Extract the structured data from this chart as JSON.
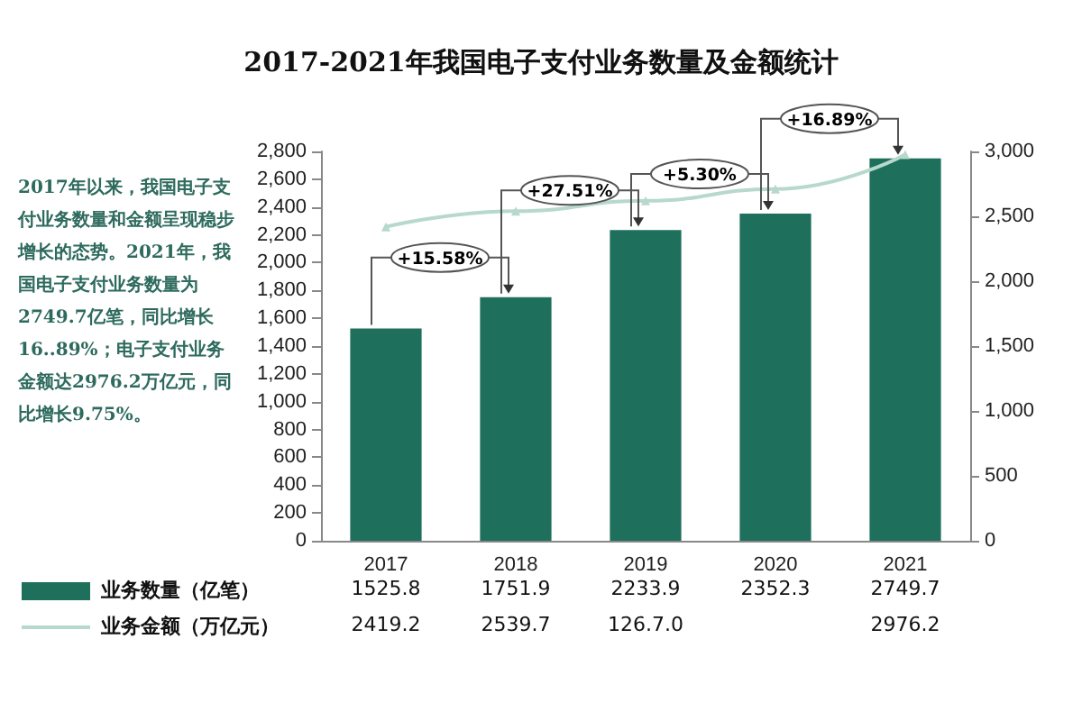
{
  "chart_data": {
    "type": "bar",
    "title": "2017-2021年我国电子支付业务数量及金额统计",
    "categories": [
      "2017",
      "2018",
      "2019",
      "2020",
      "2021"
    ],
    "series": [
      {
        "name": "业务数量（亿笔）",
        "color": "#1e6f5c",
        "values": [
          1525.8,
          1751.9,
          2233.9,
          2352.3,
          2749.7
        ],
        "value_labels": [
          "1525.8",
          "1751.9",
          "2233.9",
          "2352.3",
          "2749.7"
        ]
      },
      {
        "name": "业务金额（万亿元）",
        "type": "line",
        "axis": "y2",
        "color": "#b7d8cd",
        "values": [
          2419.2,
          2539.7,
          2620,
          2710,
          2976.2
        ],
        "value_labels": [
          "2419.2",
          "2539.7",
          "126.7.0",
          null,
          "2976.2"
        ]
      }
    ],
    "ylim": [
      0,
      2800
    ],
    "yticks": [
      0,
      200,
      400,
      600,
      800,
      {
        "value": 1000,
        "label": "1,000"
      },
      {
        "value": 1200,
        "label": "1,200"
      },
      {
        "value": 1400,
        "label": "1,400"
      },
      {
        "value": 1600,
        "label": "1,600"
      },
      {
        "value": 1800,
        "label": "1,800"
      },
      {
        "value": 2000,
        "label": "2,000"
      },
      {
        "value": 2200,
        "label": "2,200"
      },
      {
        "value": 2400,
        "label": "2,400"
      },
      {
        "value": 2600,
        "label": "2,600"
      },
      {
        "value": 2800,
        "label": "2,800"
      }
    ],
    "y2lim": [
      0,
      3000
    ],
    "y2ticks": [
      0,
      500,
      {
        "value": 1000,
        "label": "1,000"
      },
      {
        "value": 1500,
        "label": "1,500"
      },
      {
        "value": 2000,
        "label": "2,000"
      },
      {
        "value": 2500,
        "label": "2,500"
      },
      {
        "value": 3000,
        "label": "3,000"
      }
    ],
    "annotations": [
      "2017年以来，我国电子支付业务数量和金额呈现稳步增长的态势。2021年，我国电子支付业务数量为2749.7亿笔，同比增长16..89%；电子支付业务金额达2976.2万亿元，同比增长9.75%。",
      "+15.58%",
      "+27.51%",
      "+5.30%",
      "+16.89%"
    ],
    "legend": "bottom",
    "grid": false,
    "marker": "triangle",
    "line_style": "solid"
  }
}
